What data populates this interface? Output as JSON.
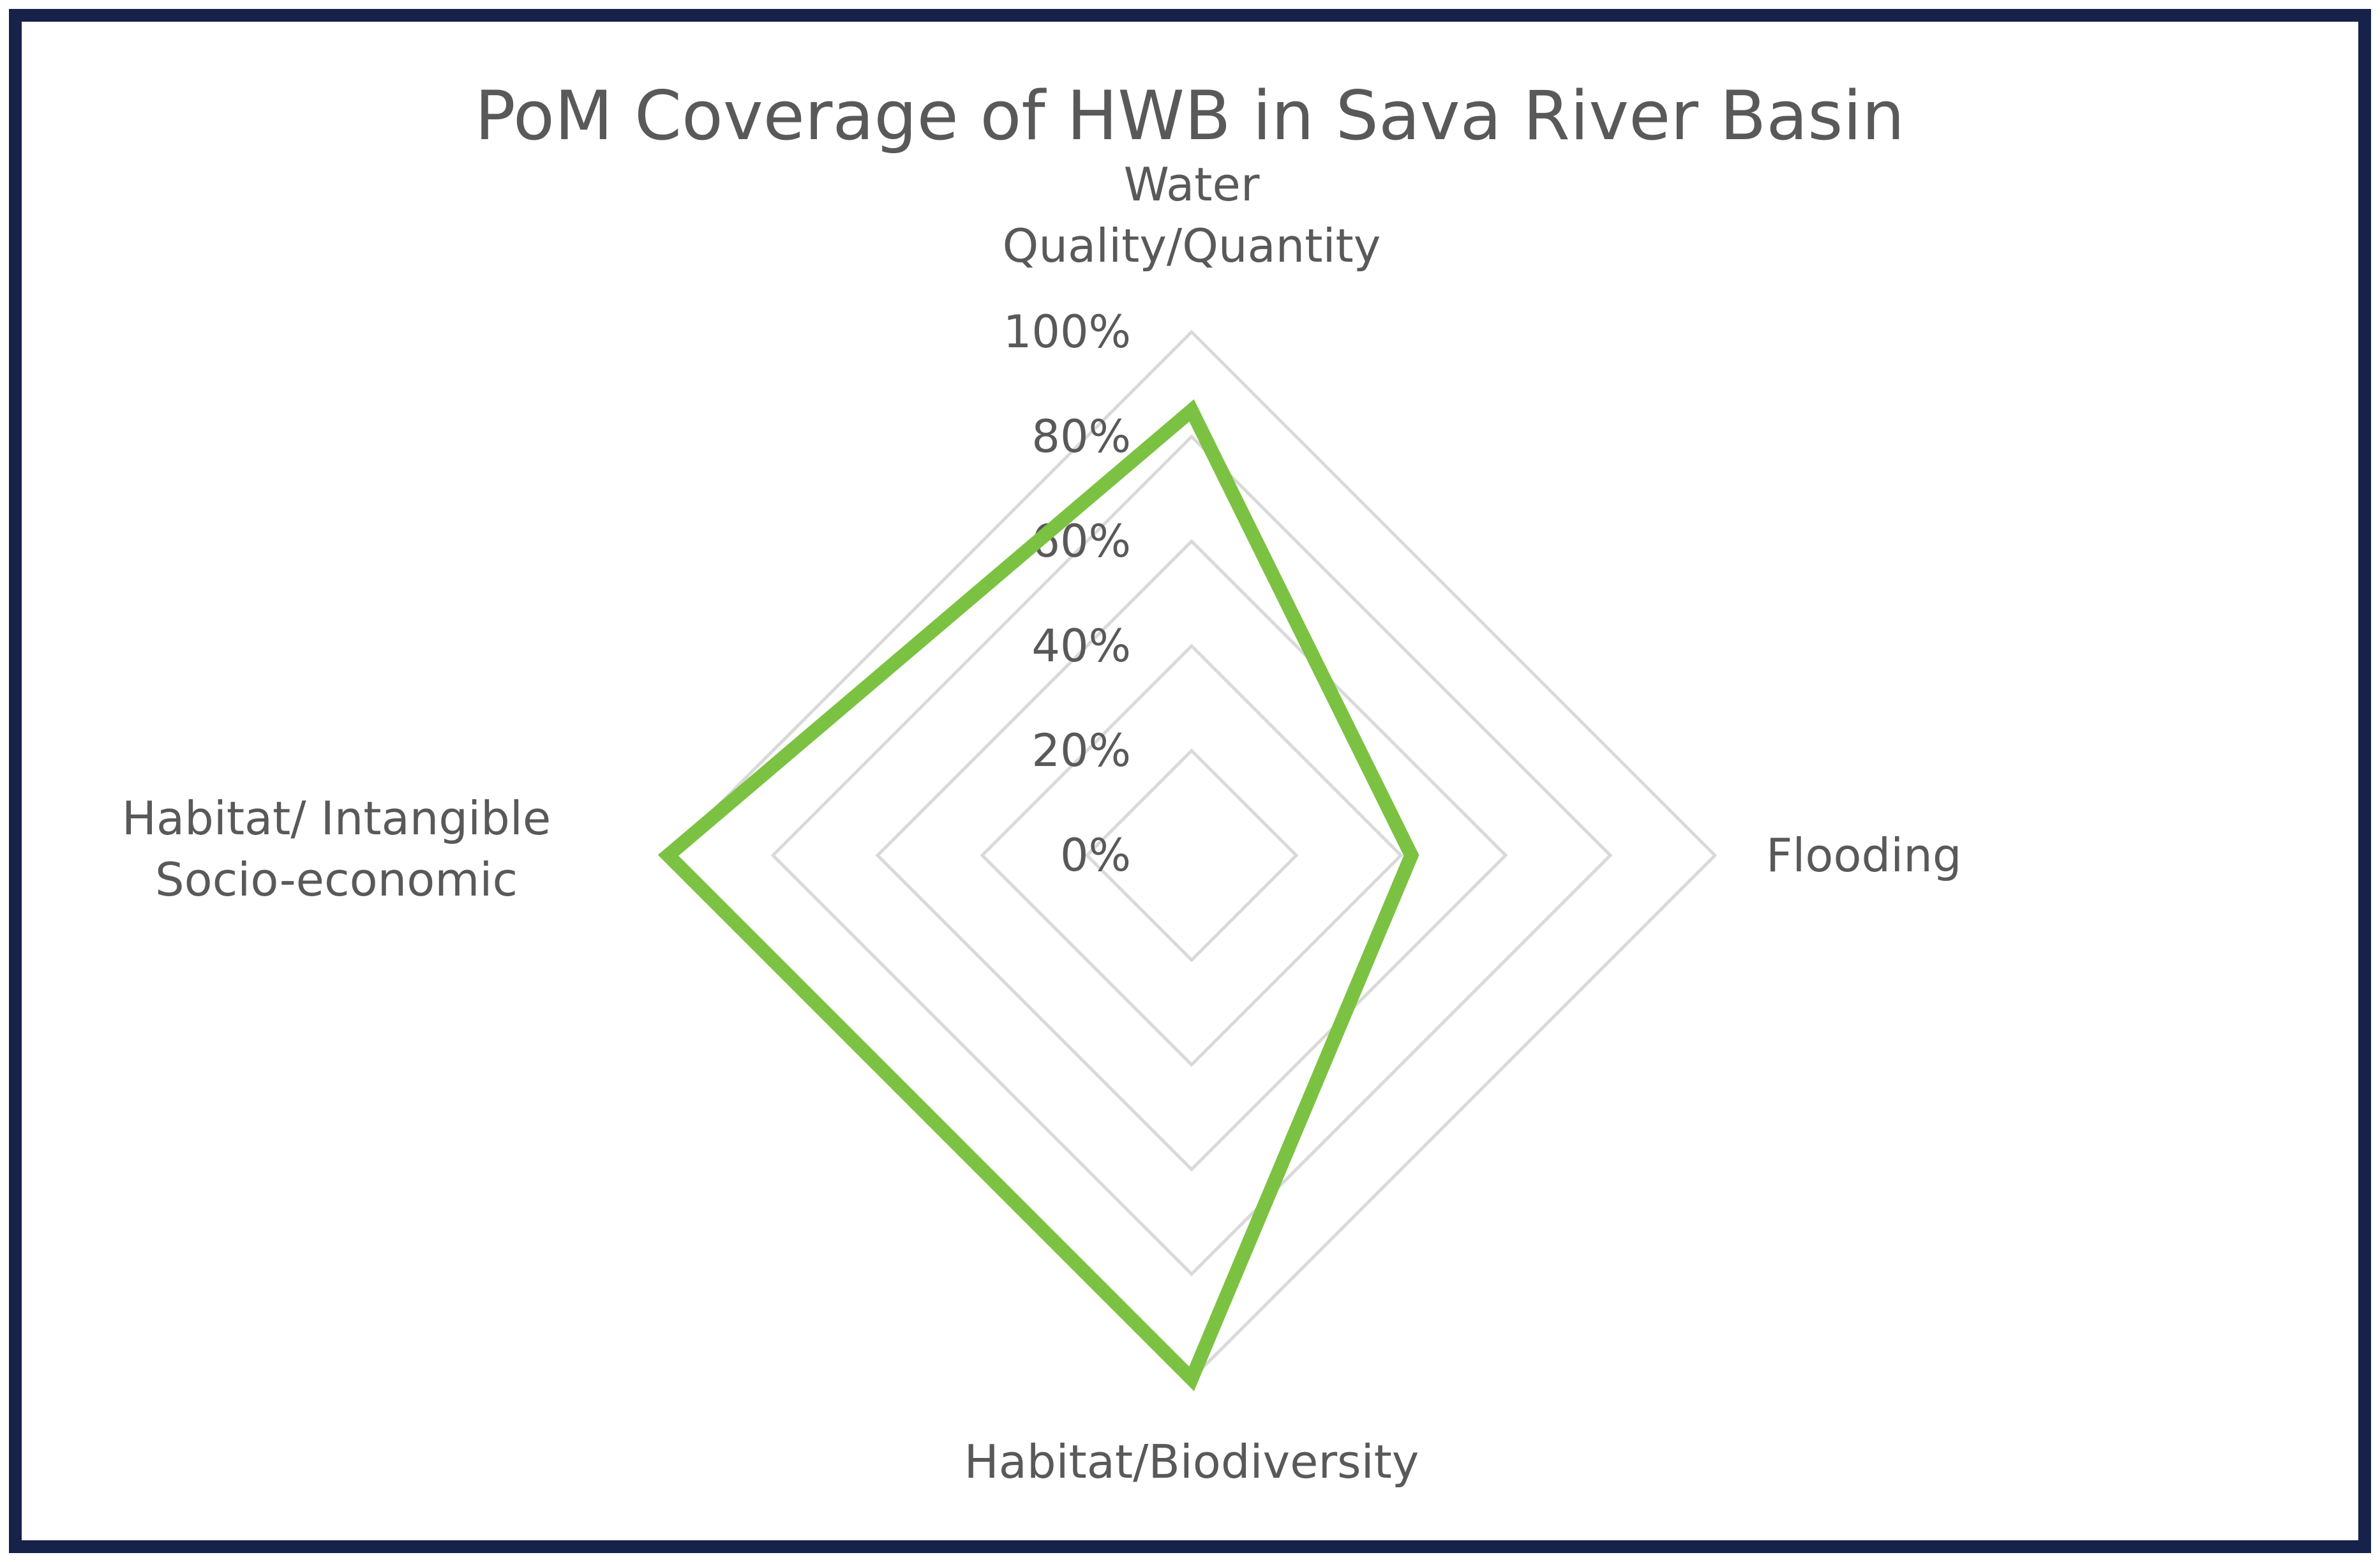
{
  "chart_data": {
    "type": "radar",
    "title": "PoM Coverage of HWB in Sava River Basin",
    "categories": [
      [
        "Water",
        "Quality/Quantity"
      ],
      [
        "Flooding"
      ],
      [
        "Habitat/Biodiversity"
      ],
      [
        "Habitat/ Intangible",
        "Socio-economic"
      ]
    ],
    "series": [
      {
        "values": [
          85,
          42,
          100,
          100
        ]
      }
    ],
    "rlim": [
      0,
      100
    ],
    "ticks": [
      "0%",
      "20%",
      "40%",
      "60%",
      "80%",
      "100%"
    ],
    "tick_values": [
      0,
      20,
      40,
      60,
      80,
      100
    ],
    "colors": {
      "series": "#7cc242",
      "grid": "#d9d9d9",
      "border": "#16224a",
      "text": "#595959"
    }
  }
}
